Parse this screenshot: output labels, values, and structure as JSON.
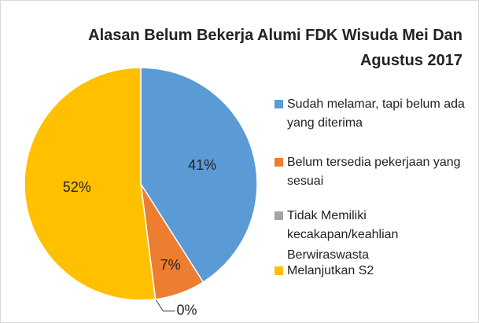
{
  "chart_data": {
    "type": "pie",
    "title": "Alasan Belum Bekerja Alumi FDK Wisuda Mei Dan Agustus 2017",
    "categories": [
      "Sudah melamar, tapi belum ada yang diterima",
      "Belum tersedia pekerjaan yang sesuai",
      "Tidak Memiliki kecakapan/keahlian",
      "Berwiraswasta",
      "Melanjutkan S2"
    ],
    "values": [
      41,
      7,
      0,
      0,
      52
    ],
    "value_labels": [
      "41%",
      "7%",
      "0%",
      null,
      "52%"
    ],
    "colors": [
      "#5b9bd5",
      "#ed7d31",
      "#a5a5a5",
      "#ffc000",
      "#ffc000"
    ],
    "legend": "right"
  }
}
